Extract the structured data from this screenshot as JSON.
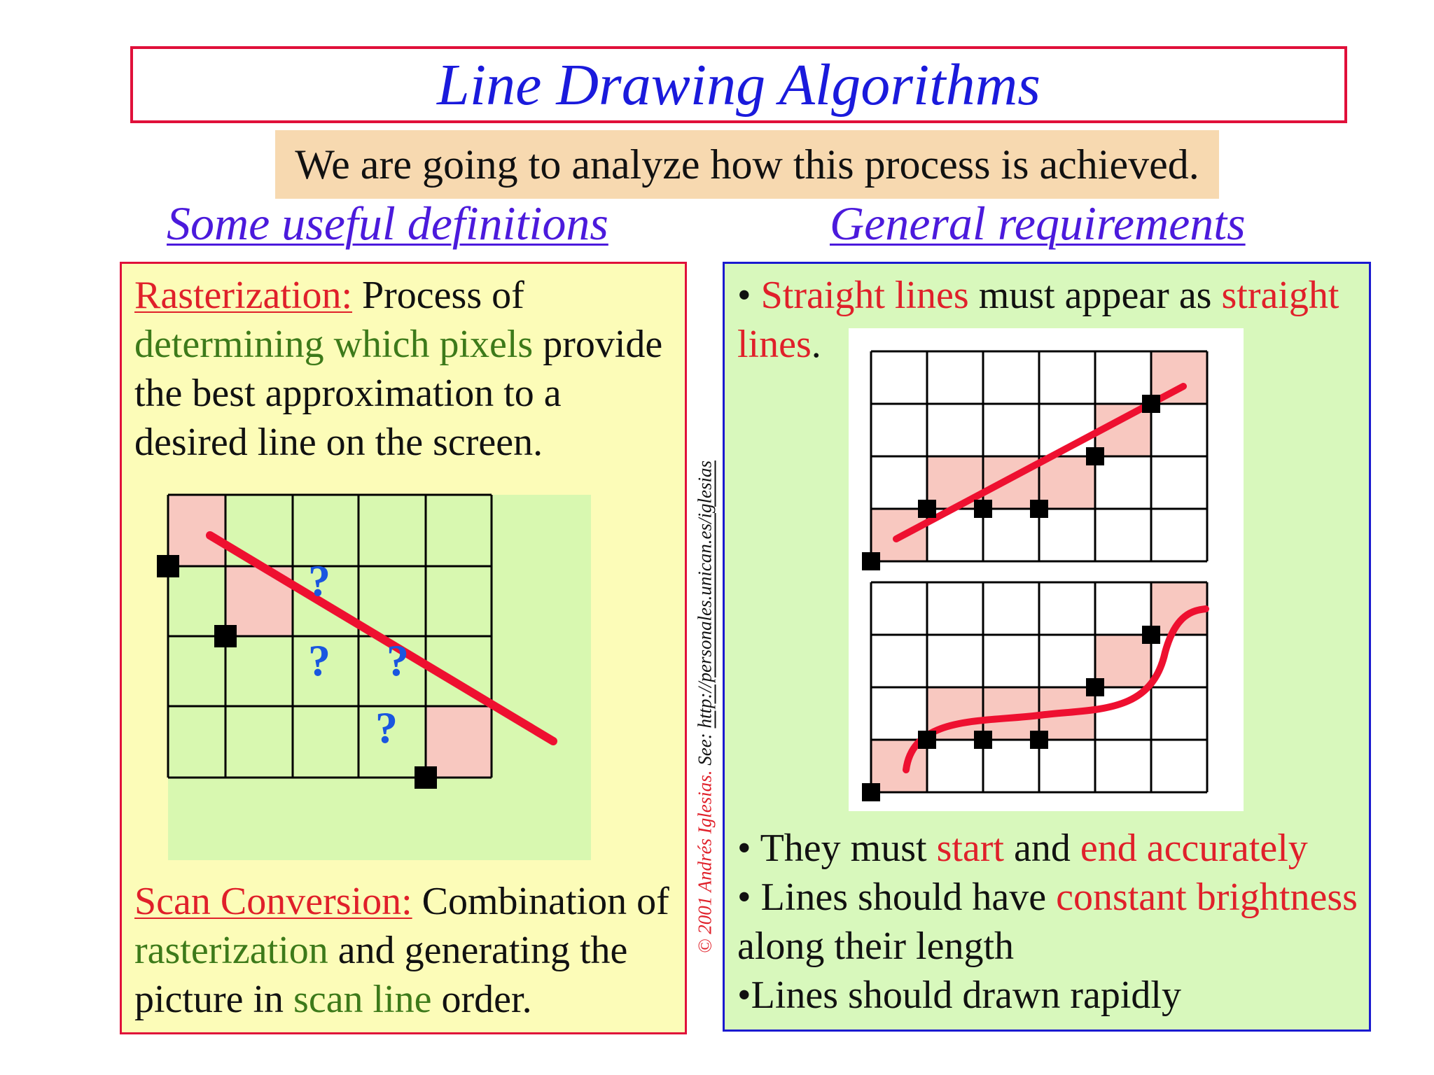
{
  "title": "Line Drawing Algorithms",
  "subtitle": "We are going to analyze how this process is achieved.",
  "headings": {
    "left": "Some useful definitions",
    "right": "General requirements"
  },
  "definitions": {
    "rasterization": {
      "term": "Rasterization:",
      "text_1": " Process of ",
      "highlight": "determining which pixels",
      "text_2": " provide the best approximation to a desired line on the screen."
    },
    "scan_conversion": {
      "term": "Scan Conversion:",
      "text_1": " Combination of ",
      "highlight_1": "rasterization",
      "text_2": " and generating the picture in ",
      "highlight_2": "scan line",
      "text_3": " order."
    }
  },
  "diagram_left": {
    "question_mark": "?",
    "colors": {
      "cell_bg": "#d8f8b0",
      "highlight": "#f8c8c0",
      "line": "#ee1030",
      "marker": "#000000",
      "question": "#1a56e0"
    }
  },
  "requirements": {
    "bullet": "•",
    "straight": {
      "red_1": "Straight lines",
      "text_1": " must appear as ",
      "red_2": "straight lines",
      "text_2": "."
    },
    "item_2": {
      "text_1": " They must ",
      "red_1": "start",
      "text_2": " and ",
      "red_2": "end accurately"
    },
    "item_3": {
      "text_1": " Lines should have ",
      "red_1": "constant brightness",
      "text_2": "along their length"
    },
    "item_4": {
      "text": "Lines should drawn rapidly"
    }
  },
  "credit": {
    "red": "© 2001 Andrés Iglesias.",
    "text": " See: ",
    "url": "http://personales.unican.es/iglesias"
  },
  "colors": {
    "title": "#1a1adc",
    "title_border": "#e0103a",
    "subtitle_bg": "#f7d9b0",
    "heading": "#4b1adc",
    "left_panel_bg": "#fcfcb8",
    "right_panel_bg": "#d8f8bc",
    "right_panel_border": "#1a1ad0",
    "red_text": "#e0202a",
    "green_text": "#3d7a1a"
  }
}
